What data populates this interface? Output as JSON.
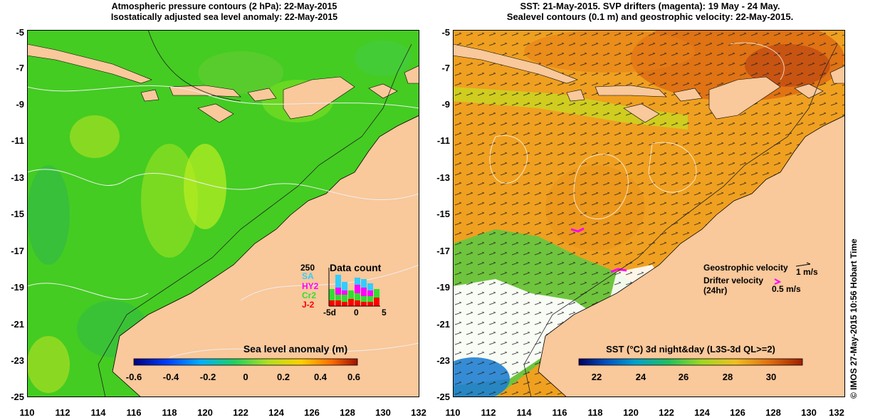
{
  "left_panel": {
    "title_line1": "Atmospheric pressure contours (2 hPa): 22-May-2015",
    "title_line2": "Isostatically adjusted sea level anomaly: 22-May-2015",
    "colorbar_label": "Sea level anomaly (m)",
    "colorbar_ticks": [
      "-0.6",
      "-0.4",
      "-0.2",
      "0",
      "0.2",
      "0.4",
      "0.6"
    ],
    "inset": {
      "title": "Data count",
      "max_label": "250",
      "missions": [
        {
          "name": "SA",
          "color": "#33ccff"
        },
        {
          "name": "HY2",
          "color": "#ff00ff"
        },
        {
          "name": "Cr2",
          "color": "#33dd33"
        },
        {
          "name": "J-2",
          "color": "#ff0000"
        }
      ],
      "x_ticks": [
        "-5d",
        "0",
        "5"
      ]
    }
  },
  "right_panel": {
    "title_line1": "SST: 21-May-2015. SVP drifters (magenta): 19 May - 24 May.",
    "title_line2": "Sealevel contours (0.1 m) and geostrophic velocity: 22-May-2015.",
    "colorbar_label": "SST (°C) 3d night&day (L3S-3d QL>=2)",
    "colorbar_ticks": [
      "22",
      "24",
      "26",
      "28",
      "30"
    ],
    "legend": {
      "geostrophic_label": "Geostrophic velocity",
      "geostrophic_scale": "1 m/s",
      "drifter_label_line1": "Drifter velocity",
      "drifter_label_line2": "(24hr)",
      "drifter_scale": "0.5 m/s"
    }
  },
  "axes": {
    "y_ticks": [
      "-5",
      "-7",
      "-9",
      "-11",
      "-13",
      "-15",
      "-17",
      "-19",
      "-21",
      "-23",
      "-25"
    ],
    "x_ticks": [
      "110",
      "112",
      "114",
      "116",
      "118",
      "120",
      "122",
      "124",
      "126",
      "128",
      "130",
      "132"
    ]
  },
  "credit": "© IMOS 27-May-2015 10:56 Hobart Time",
  "colors": {
    "land": "#f9c89b",
    "ocean_anomaly": "#44cc22",
    "ocean_sst": "#f0a020",
    "drifter": "#ff00ff"
  }
}
